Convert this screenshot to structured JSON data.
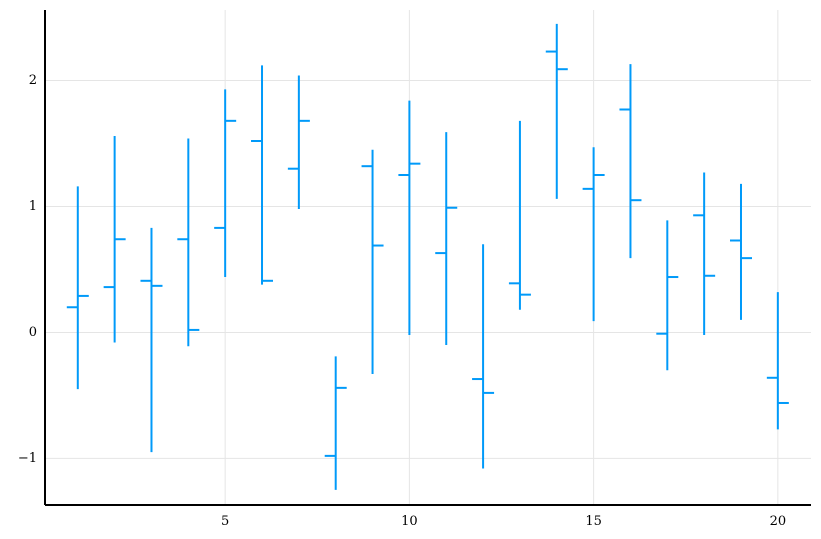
{
  "chart_data": {
    "type": "ohlc",
    "color": "#009af9",
    "x": [
      1,
      2,
      3,
      4,
      5,
      6,
      7,
      8,
      9,
      10,
      11,
      12,
      13,
      14,
      15,
      16,
      17,
      18,
      19,
      20
    ],
    "open": [
      0.2,
      0.36,
      0.41,
      0.74,
      0.83,
      1.52,
      1.3,
      -0.98,
      1.32,
      1.25,
      0.63,
      -0.37,
      0.39,
      2.23,
      1.14,
      1.77,
      -0.01,
      0.93,
      0.73,
      -0.36
    ],
    "high": [
      1.16,
      1.56,
      0.83,
      1.54,
      1.93,
      2.12,
      2.04,
      -0.19,
      1.45,
      1.84,
      1.59,
      0.7,
      1.68,
      2.45,
      1.47,
      2.13,
      0.89,
      1.27,
      1.18,
      0.32
    ],
    "low": [
      -0.45,
      -0.08,
      -0.95,
      -0.11,
      0.44,
      0.38,
      0.98,
      -1.25,
      -0.33,
      -0.02,
      -0.1,
      -1.08,
      0.18,
      1.06,
      0.09,
      0.59,
      -0.3,
      -0.02,
      0.1,
      -0.77
    ],
    "close": [
      0.29,
      0.74,
      0.37,
      0.02,
      1.68,
      0.41,
      1.68,
      -0.44,
      0.69,
      1.34,
      0.99,
      -0.48,
      0.3,
      2.09,
      1.25,
      1.05,
      0.44,
      0.45,
      0.59,
      -0.56
    ],
    "xlim": [
      0.11,
      20.9
    ],
    "ylim": [
      -1.37,
      2.56
    ],
    "xticks": [
      5,
      10,
      15,
      20
    ],
    "yticks": [
      {
        "value": -1,
        "label": "−1"
      },
      0,
      1,
      2
    ],
    "grid": true
  }
}
